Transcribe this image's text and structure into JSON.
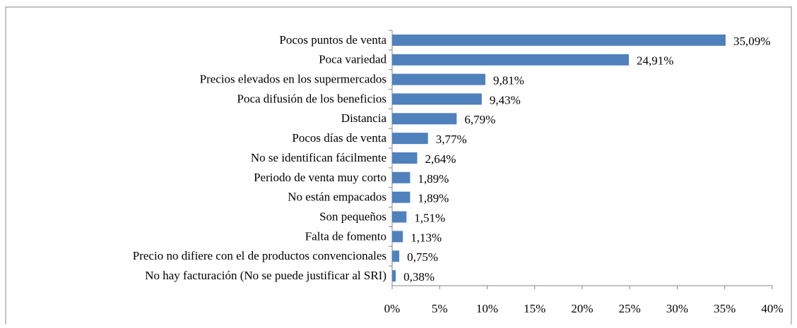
{
  "chart_data": {
    "type": "barh",
    "categories": [
      "Pocos puntos de venta",
      "Poca variedad",
      "Precios elevados en los supermercados",
      "Poca difusión de los beneficios",
      "Distancia",
      "Pocos días de venta",
      "No se identifican fácilmente",
      "Periodo de venta muy corto",
      "No están empacados",
      "Son pequeños",
      "Falta de fomento",
      "Precio no difiere con el de productos convencionales",
      "No hay facturación (No se puede justificar al SRI)"
    ],
    "values": [
      35.09,
      24.91,
      9.81,
      9.43,
      6.79,
      3.77,
      2.64,
      1.89,
      1.89,
      1.51,
      1.13,
      0.75,
      0.38
    ],
    "value_labels": [
      "35,09%",
      "24,91%",
      "9,81%",
      "9,43%",
      "6,79%",
      "3,77%",
      "2,64%",
      "1,89%",
      "1,89%",
      "1,51%",
      "1,13%",
      "0,75%",
      "0,38%"
    ],
    "color": "#4f81bd",
    "xlim": [
      0,
      40
    ],
    "xticks": [
      {
        "value": 0,
        "label": "0%"
      },
      {
        "value": 5,
        "label": "5%"
      },
      {
        "value": 10,
        "label": "10%"
      },
      {
        "value": 15,
        "label": "15%"
      },
      {
        "value": 20,
        "label": "20%"
      },
      {
        "value": 25,
        "label": "25%"
      },
      {
        "value": 30,
        "label": "30%"
      },
      {
        "value": 35,
        "label": "35%"
      },
      {
        "value": 40,
        "label": "40%"
      }
    ],
    "grid": false
  }
}
